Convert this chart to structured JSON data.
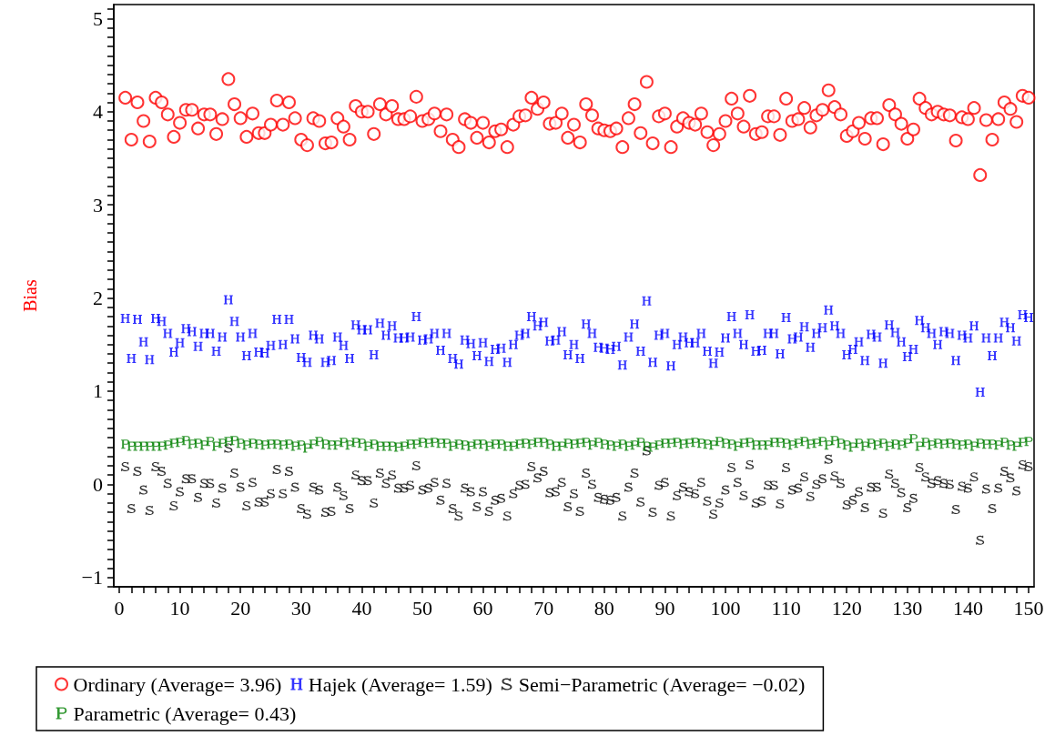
{
  "chart_data": {
    "type": "scatter",
    "ylabel": "Bias",
    "legend": "bottom",
    "grid": false,
    "xlim": [
      -0.9,
      150.9
    ],
    "ylim": [
      -1.1,
      5.15
    ],
    "xticks": [
      0,
      {
        "value": 2,
        "label": null
      },
      {
        "value": 4,
        "label": null
      },
      {
        "value": 6,
        "label": null
      },
      {
        "value": 8,
        "label": null
      },
      10,
      {
        "value": 12,
        "label": null
      },
      {
        "value": 14,
        "label": null
      },
      {
        "value": 16,
        "label": null
      },
      {
        "value": 18,
        "label": null
      },
      20,
      {
        "value": 22,
        "label": null
      },
      {
        "value": 24,
        "label": null
      },
      {
        "value": 26,
        "label": null
      },
      {
        "value": 28,
        "label": null
      },
      30,
      {
        "value": 32,
        "label": null
      },
      {
        "value": 34,
        "label": null
      },
      {
        "value": 36,
        "label": null
      },
      {
        "value": 38,
        "label": null
      },
      40,
      {
        "value": 42,
        "label": null
      },
      {
        "value": 44,
        "label": null
      },
      {
        "value": 46,
        "label": null
      },
      {
        "value": 48,
        "label": null
      },
      50,
      {
        "value": 52,
        "label": null
      },
      {
        "value": 54,
        "label": null
      },
      {
        "value": 56,
        "label": null
      },
      {
        "value": 58,
        "label": null
      },
      60,
      {
        "value": 62,
        "label": null
      },
      {
        "value": 64,
        "label": null
      },
      {
        "value": 66,
        "label": null
      },
      {
        "value": 68,
        "label": null
      },
      70,
      {
        "value": 72,
        "label": null
      },
      {
        "value": 74,
        "label": null
      },
      {
        "value": 76,
        "label": null
      },
      {
        "value": 78,
        "label": null
      },
      80,
      {
        "value": 82,
        "label": null
      },
      {
        "value": 84,
        "label": null
      },
      {
        "value": 86,
        "label": null
      },
      {
        "value": 88,
        "label": null
      },
      90,
      {
        "value": 92,
        "label": null
      },
      {
        "value": 94,
        "label": null
      },
      {
        "value": 96,
        "label": null
      },
      {
        "value": 98,
        "label": null
      },
      100,
      {
        "value": 102,
        "label": null
      },
      {
        "value": 104,
        "label": null
      },
      {
        "value": 106,
        "label": null
      },
      {
        "value": 108,
        "label": null
      },
      110,
      {
        "value": 112,
        "label": null
      },
      {
        "value": 114,
        "label": null
      },
      {
        "value": 116,
        "label": null
      },
      {
        "value": 118,
        "label": null
      },
      120,
      {
        "value": 122,
        "label": null
      },
      {
        "value": 124,
        "label": null
      },
      {
        "value": 126,
        "label": null
      },
      {
        "value": 128,
        "label": null
      },
      130,
      {
        "value": 132,
        "label": null
      },
      {
        "value": 134,
        "label": null
      },
      {
        "value": 136,
        "label": null
      },
      {
        "value": 138,
        "label": null
      },
      140,
      {
        "value": 142,
        "label": null
      },
      {
        "value": 144,
        "label": null
      },
      {
        "value": 146,
        "label": null
      },
      {
        "value": 148,
        "label": null
      },
      150
    ],
    "yticks": [
      {
        "value": -1.1,
        "label": null
      },
      {
        "value": -1,
        "label": "−1"
      },
      {
        "value": -0.9,
        "label": null
      },
      {
        "value": -0.8,
        "label": null
      },
      {
        "value": -0.7,
        "label": null
      },
      {
        "value": -0.6,
        "label": null
      },
      {
        "value": -0.5,
        "label": null
      },
      {
        "value": -0.4,
        "label": null
      },
      {
        "value": -0.3,
        "label": null
      },
      {
        "value": -0.2,
        "label": null
      },
      {
        "value": -0.1,
        "label": null
      },
      0,
      {
        "value": 0.1,
        "label": null
      },
      {
        "value": 0.2,
        "label": null
      },
      {
        "value": 0.3,
        "label": null
      },
      {
        "value": 0.4,
        "label": null
      },
      {
        "value": 0.5,
        "label": null
      },
      {
        "value": 0.6,
        "label": null
      },
      {
        "value": 0.7,
        "label": null
      },
      {
        "value": 0.8,
        "label": null
      },
      {
        "value": 0.9,
        "label": null
      },
      1,
      {
        "value": 1.1,
        "label": null
      },
      {
        "value": 1.2,
        "label": null
      },
      {
        "value": 1.3,
        "label": null
      },
      {
        "value": 1.4,
        "label": null
      },
      {
        "value": 1.5,
        "label": null
      },
      {
        "value": 1.6,
        "label": null
      },
      {
        "value": 1.7,
        "label": null
      },
      {
        "value": 1.8,
        "label": null
      },
      {
        "value": 1.9,
        "label": null
      },
      2,
      {
        "value": 2.1,
        "label": null
      },
      {
        "value": 2.2,
        "label": null
      },
      {
        "value": 2.3,
        "label": null
      },
      {
        "value": 2.4,
        "label": null
      },
      {
        "value": 2.5,
        "label": null
      },
      {
        "value": 2.6,
        "label": null
      },
      {
        "value": 2.7,
        "label": null
      },
      {
        "value": 2.8,
        "label": null
      },
      {
        "value": 2.9,
        "label": null
      },
      3,
      {
        "value": 3.1,
        "label": null
      },
      {
        "value": 3.2,
        "label": null
      },
      {
        "value": 3.3,
        "label": null
      },
      {
        "value": 3.4,
        "label": null
      },
      {
        "value": 3.5,
        "label": null
      },
      {
        "value": 3.6,
        "label": null
      },
      {
        "value": 3.7,
        "label": null
      },
      {
        "value": 3.8,
        "label": null
      },
      {
        "value": 3.9,
        "label": null
      },
      4,
      {
        "value": 4.1,
        "label": null
      },
      {
        "value": 4.2,
        "label": null
      },
      {
        "value": 4.3,
        "label": null
      },
      {
        "value": 4.4,
        "label": null
      },
      {
        "value": 4.5,
        "label": null
      },
      {
        "value": 4.6,
        "label": null
      },
      {
        "value": 4.7,
        "label": null
      },
      {
        "value": 4.8,
        "label": null
      },
      {
        "value": 4.9,
        "label": null
      },
      5,
      {
        "value": 5.1,
        "label": null
      }
    ],
    "x": [
      1,
      2,
      3,
      4,
      5,
      6,
      7,
      8,
      9,
      10,
      11,
      12,
      13,
      14,
      15,
      16,
      17,
      18,
      19,
      20,
      21,
      22,
      23,
      24,
      25,
      26,
      27,
      28,
      29,
      30,
      31,
      32,
      33,
      34,
      35,
      36,
      37,
      38,
      39,
      40,
      41,
      42,
      43,
      44,
      45,
      46,
      47,
      48,
      49,
      50,
      51,
      52,
      53,
      54,
      55,
      56,
      57,
      58,
      59,
      60,
      61,
      62,
      63,
      64,
      65,
      66,
      67,
      68,
      69,
      70,
      71,
      72,
      73,
      74,
      75,
      76,
      77,
      78,
      79,
      80,
      81,
      82,
      83,
      84,
      85,
      86,
      87,
      88,
      89,
      90,
      91,
      92,
      93,
      94,
      95,
      96,
      97,
      98,
      99,
      100,
      101,
      102,
      103,
      104,
      105,
      106,
      107,
      108,
      109,
      110,
      111,
      112,
      113,
      114,
      115,
      116,
      117,
      118,
      119,
      120,
      121,
      122,
      123,
      124,
      125,
      126,
      127,
      128,
      129,
      130,
      131,
      132,
      133,
      134,
      135,
      136,
      137,
      138,
      139,
      140,
      141,
      142,
      143,
      144,
      145,
      146,
      147,
      148,
      149,
      150
    ],
    "series": [
      {
        "name": "Ordinary (Average= 3.96)",
        "color": "#ff0000",
        "marker": "circle",
        "values": [
          4.15,
          3.7,
          4.1,
          3.9,
          3.68,
          4.15,
          4.1,
          3.97,
          3.73,
          3.88,
          4.02,
          4.02,
          3.82,
          3.97,
          3.97,
          3.76,
          3.92,
          4.35,
          4.08,
          3.93,
          3.73,
          3.98,
          3.77,
          3.77,
          3.86,
          4.12,
          3.86,
          4.1,
          3.93,
          3.7,
          3.64,
          3.93,
          3.9,
          3.66,
          3.67,
          3.93,
          3.84,
          3.7,
          4.06,
          4.0,
          4.0,
          3.76,
          4.08,
          3.97,
          4.06,
          3.92,
          3.92,
          3.95,
          4.16,
          3.9,
          3.92,
          3.98,
          3.79,
          3.97,
          3.7,
          3.62,
          3.92,
          3.88,
          3.72,
          3.88,
          3.67,
          3.79,
          3.81,
          3.62,
          3.86,
          3.95,
          3.96,
          4.15,
          4.03,
          4.1,
          3.87,
          3.88,
          3.98,
          3.72,
          3.86,
          3.67,
          4.08,
          3.96,
          3.82,
          3.8,
          3.79,
          3.82,
          3.62,
          3.93,
          4.08,
          3.77,
          4.32,
          3.66,
          3.95,
          3.98,
          3.62,
          3.84,
          3.93,
          3.88,
          3.86,
          3.98,
          3.78,
          3.64,
          3.76,
          3.9,
          4.14,
          3.98,
          3.84,
          4.17,
          3.76,
          3.78,
          3.95,
          3.95,
          3.75,
          4.14,
          3.9,
          3.92,
          4.04,
          3.83,
          3.96,
          4.02,
          4.23,
          4.05,
          3.97,
          3.74,
          3.79,
          3.88,
          3.71,
          3.93,
          3.93,
          3.65,
          4.07,
          3.97,
          3.87,
          3.71,
          3.81,
          4.14,
          4.04,
          3.97,
          4.0,
          3.97,
          3.96,
          3.69,
          3.94,
          3.92,
          4.04,
          3.32,
          3.91,
          3.7,
          3.92,
          4.1,
          4.03,
          3.89,
          4.17,
          4.15
        ]
      },
      {
        "name": "Hajek (Average= 1.59)",
        "color": "#0000ff",
        "values": [
          1.78,
          1.35,
          1.77,
          1.53,
          1.34,
          1.78,
          1.75,
          1.62,
          1.42,
          1.52,
          1.67,
          1.64,
          1.48,
          1.62,
          1.62,
          1.43,
          1.58,
          1.98,
          1.75,
          1.58,
          1.38,
          1.62,
          1.42,
          1.41,
          1.49,
          1.77,
          1.5,
          1.77,
          1.56,
          1.36,
          1.31,
          1.6,
          1.56,
          1.31,
          1.33,
          1.58,
          1.49,
          1.35,
          1.71,
          1.66,
          1.66,
          1.39,
          1.73,
          1.6,
          1.7,
          1.57,
          1.57,
          1.58,
          1.8,
          1.55,
          1.56,
          1.62,
          1.44,
          1.62,
          1.35,
          1.29,
          1.55,
          1.51,
          1.38,
          1.52,
          1.32,
          1.45,
          1.46,
          1.31,
          1.5,
          1.6,
          1.62,
          1.8,
          1.7,
          1.74,
          1.54,
          1.55,
          1.64,
          1.39,
          1.5,
          1.35,
          1.72,
          1.62,
          1.47,
          1.46,
          1.45,
          1.48,
          1.28,
          1.58,
          1.72,
          1.43,
          1.97,
          1.31,
          1.6,
          1.62,
          1.27,
          1.5,
          1.58,
          1.52,
          1.52,
          1.62,
          1.43,
          1.3,
          1.42,
          1.57,
          1.8,
          1.62,
          1.5,
          1.82,
          1.43,
          1.44,
          1.62,
          1.62,
          1.4,
          1.79,
          1.56,
          1.58,
          1.69,
          1.47,
          1.62,
          1.68,
          1.87,
          1.7,
          1.62,
          1.39,
          1.45,
          1.53,
          1.33,
          1.61,
          1.58,
          1.3,
          1.71,
          1.63,
          1.53,
          1.37,
          1.45,
          1.76,
          1.68,
          1.62,
          1.5,
          1.64,
          1.62,
          1.33,
          1.6,
          1.57,
          1.7,
          0.99,
          1.57,
          1.38,
          1.57,
          1.74,
          1.68,
          1.54,
          1.82,
          1.79
        ]
      },
      {
        "name": "Semi−Parametric (Average= −0.02)",
        "color": "#000000",
        "values": [
          0.19,
          -0.26,
          0.14,
          -0.06,
          -0.28,
          0.19,
          0.14,
          0.01,
          -0.23,
          -0.08,
          0.06,
          0.06,
          -0.14,
          0.01,
          0.01,
          -0.2,
          -0.04,
          0.39,
          0.12,
          -0.03,
          -0.23,
          0.02,
          -0.19,
          -0.19,
          -0.1,
          0.16,
          -0.1,
          0.14,
          -0.03,
          -0.26,
          -0.32,
          -0.03,
          -0.06,
          -0.3,
          -0.29,
          -0.03,
          -0.12,
          -0.26,
          0.1,
          0.04,
          0.04,
          -0.2,
          0.12,
          0.01,
          0.1,
          -0.04,
          -0.04,
          -0.01,
          0.2,
          -0.06,
          -0.04,
          0.02,
          -0.17,
          0.01,
          -0.26,
          -0.34,
          -0.04,
          -0.08,
          -0.24,
          -0.08,
          -0.29,
          -0.17,
          -0.15,
          -0.34,
          -0.1,
          -0.01,
          0,
          0.19,
          0.07,
          0.14,
          -0.09,
          -0.08,
          0.02,
          -0.24,
          -0.1,
          -0.29,
          0.12,
          0,
          -0.14,
          -0.16,
          -0.17,
          -0.14,
          -0.34,
          -0.03,
          0.12,
          -0.19,
          0.36,
          -0.3,
          -0.01,
          0.02,
          -0.34,
          -0.12,
          -0.03,
          -0.08,
          -0.1,
          0.02,
          -0.18,
          -0.32,
          -0.2,
          -0.06,
          0.18,
          0.02,
          -0.12,
          0.21,
          -0.2,
          -0.18,
          -0.01,
          -0.01,
          -0.21,
          0.18,
          -0.06,
          -0.04,
          0.08,
          -0.13,
          0,
          0.06,
          0.27,
          0.09,
          0.01,
          -0.22,
          -0.17,
          -0.08,
          -0.25,
          -0.03,
          -0.03,
          -0.31,
          0.11,
          0.01,
          -0.09,
          -0.25,
          -0.15,
          0.18,
          0.08,
          0.01,
          0.04,
          0.01,
          0,
          -0.27,
          -0.02,
          -0.04,
          0.08,
          -0.6,
          -0.05,
          -0.26,
          -0.04,
          0.14,
          0.07,
          -0.07,
          0.21,
          0.19
        ]
      },
      {
        "name": "Parametric (Average= 0.43)",
        "color": "#008000",
        "values": [
          0.43,
          0.41,
          0.41,
          0.41,
          0.41,
          0.41,
          0.41,
          0.42,
          0.44,
          0.45,
          0.47,
          0.43,
          0.44,
          0.42,
          0.46,
          0.41,
          0.44,
          0.46,
          0.47,
          0.44,
          0.42,
          0.44,
          0.43,
          0.42,
          0.43,
          0.43,
          0.42,
          0.43,
          0.41,
          0.42,
          0.39,
          0.43,
          0.46,
          0.43,
          0.42,
          0.42,
          0.45,
          0.42,
          0.45,
          0.44,
          0.41,
          0.43,
          0.41,
          0.41,
          0.41,
          0.4,
          0.41,
          0.43,
          0.43,
          0.45,
          0.44,
          0.45,
          0.44,
          0.44,
          0.41,
          0.43,
          0.42,
          0.41,
          0.43,
          0.43,
          0.41,
          0.43,
          0.43,
          0.41,
          0.41,
          0.43,
          0.44,
          0.43,
          0.45,
          0.45,
          0.43,
          0.41,
          0.41,
          0.44,
          0.43,
          0.44,
          0.45,
          0.42,
          0.45,
          0.43,
          0.42,
          0.41,
          0.43,
          0.41,
          0.42,
          0.45,
          0.41,
          0.4,
          0.42,
          0.44,
          0.44,
          0.45,
          0.43,
          0.44,
          0.45,
          0.44,
          0.43,
          0.42,
          0.46,
          0.44,
          0.43,
          0.41,
          0.44,
          0.45,
          0.42,
          0.42,
          0.42,
          0.45,
          0.45,
          0.44,
          0.42,
          0.44,
          0.46,
          0.43,
          0.44,
          0.46,
          0.42,
          0.47,
          0.44,
          0.42,
          0.4,
          0.44,
          0.41,
          0.44,
          0.42,
          0.44,
          0.41,
          0.43,
          0.42,
          0.44,
          0.49,
          0.41,
          0.45,
          0.42,
          0.44,
          0.43,
          0.44,
          0.43,
          0.42,
          0.43,
          0.41,
          0.44,
          0.43,
          0.43,
          0.42,
          0.45,
          0.42,
          0.41,
          0.45,
          0.46
        ]
      }
    ]
  }
}
